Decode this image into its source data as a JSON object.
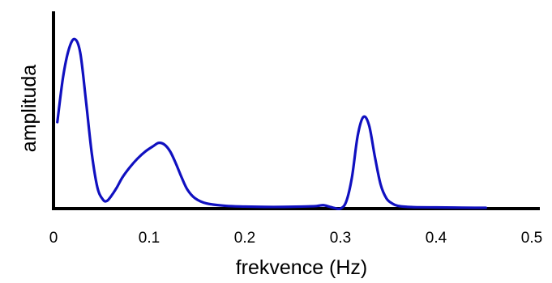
{
  "partial_title": "",
  "chart_data": {
    "type": "line",
    "xlabel": "frekvence (Hz)",
    "ylabel": "amplituda",
    "xlim": [
      0,
      0.5
    ],
    "ylim": [
      0,
      1
    ],
    "xticks": [
      "0",
      "0.1",
      "0.2",
      "0.3",
      "0.4",
      "0.5"
    ],
    "grid": false,
    "colors": {
      "line": "#1010c0",
      "axis": "#000000"
    },
    "series": [
      {
        "x": [
          0.004,
          0.01,
          0.016,
          0.022,
          0.028,
          0.034,
          0.04,
          0.046,
          0.052,
          0.056,
          0.06,
          0.066,
          0.072,
          0.08,
          0.088,
          0.096,
          0.104,
          0.11,
          0.116,
          0.122,
          0.128,
          0.134,
          0.14,
          0.148,
          0.16,
          0.18,
          0.2,
          0.22,
          0.24,
          0.26,
          0.275,
          0.282,
          0.288,
          0.294,
          0.3,
          0.306,
          0.312,
          0.318,
          0.324,
          0.33,
          0.336,
          0.342,
          0.348,
          0.354,
          0.36,
          0.37,
          0.38,
          0.4,
          0.42,
          0.44,
          0.452
        ],
        "y": [
          0.5,
          0.76,
          0.92,
          0.98,
          0.9,
          0.62,
          0.32,
          0.12,
          0.05,
          0.045,
          0.07,
          0.12,
          0.18,
          0.24,
          0.29,
          0.33,
          0.36,
          0.38,
          0.37,
          0.33,
          0.26,
          0.18,
          0.11,
          0.06,
          0.03,
          0.016,
          0.012,
          0.01,
          0.01,
          0.012,
          0.015,
          0.02,
          0.012,
          0.003,
          0.0,
          0.04,
          0.18,
          0.42,
          0.53,
          0.48,
          0.3,
          0.14,
          0.06,
          0.03,
          0.016,
          0.01,
          0.008,
          0.007,
          0.006,
          0.005,
          0.005
        ]
      }
    ]
  }
}
